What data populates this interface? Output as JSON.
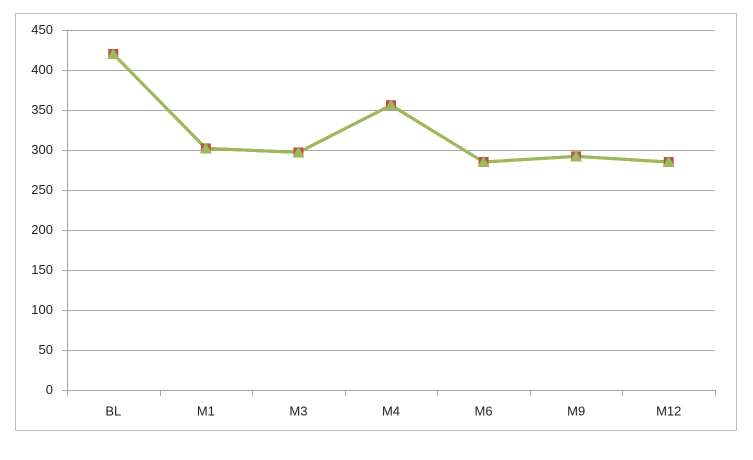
{
  "chart_data": {
    "type": "line",
    "categories": [
      "BL",
      "M1",
      "M3",
      "M4",
      "M6",
      "M9",
      "M12"
    ],
    "series": [
      {
        "color": "#c0504d",
        "marker": "square",
        "values": [
          420,
          302,
          297,
          356,
          285,
          292,
          285
        ]
      },
      {
        "color": "#9bbb59",
        "marker": "triangle",
        "values": [
          420,
          302,
          297,
          356,
          285,
          292,
          285
        ]
      }
    ],
    "ylim": [
      0,
      450
    ],
    "yticks": [
      0,
      50,
      100,
      150,
      200,
      250,
      300,
      350,
      400,
      450
    ],
    "grid": true
  }
}
